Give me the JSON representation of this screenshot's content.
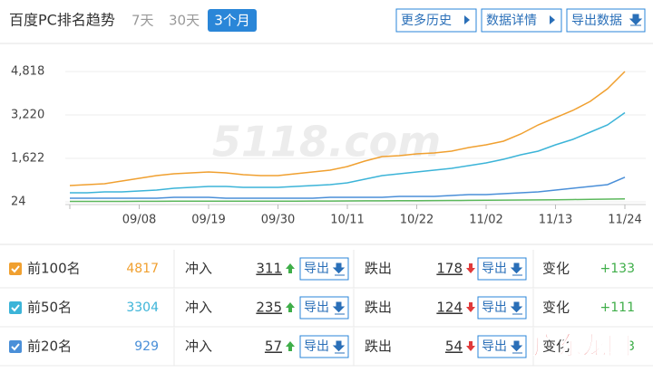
{
  "header": {
    "title": "百度PC排名趋势",
    "ranges": [
      "7天",
      "30天",
      "3个月"
    ],
    "buttons": [
      "更多历史",
      "数据详情",
      "导出数据"
    ]
  },
  "chart_data": {
    "type": "line",
    "watermark": "5118.com",
    "categories": [
      null,
      null,
      null,
      null,
      "09/08",
      null,
      null,
      null,
      "09/19",
      null,
      null,
      null,
      "09/30",
      null,
      null,
      null,
      "10/11",
      null,
      null,
      null,
      "10/22",
      null,
      null,
      null,
      "11/02",
      null,
      null,
      null,
      "11/13",
      null,
      null,
      null,
      "11/24"
    ],
    "ylim": [
      -76,
      5284
    ],
    "yticks": [
      24,
      {
        "value": 1622,
        "label": "1,622"
      },
      {
        "value": 3220,
        "label": "3,220"
      },
      {
        "value": 4818,
        "label": "4,818"
      }
    ],
    "grid": true,
    "series": [
      {
        "color": "#f0a030",
        "values": [
          623,
          657,
          690,
          790,
          890,
          990,
          1056,
          1090,
          1123,
          1090,
          1023,
          990,
          990,
          1056,
          1123,
          1190,
          1323,
          1523,
          1689,
          1722,
          1789,
          1822,
          1889,
          2022,
          2122,
          2255,
          2522,
          2855,
          3121,
          3388,
          3720,
          4186,
          4817
        ]
      },
      {
        "color": "#3cb4d8",
        "values": [
          357,
          357,
          390,
          390,
          424,
          457,
          524,
          557,
          590,
          590,
          557,
          557,
          557,
          590,
          623,
          657,
          723,
          856,
          990,
          1056,
          1123,
          1190,
          1256,
          1356,
          1456,
          1589,
          1756,
          1889,
          2122,
          2322,
          2588,
          2855,
          3304
        ]
      },
      {
        "color": "#4a8fd8",
        "values": [
          157,
          157,
          157,
          157,
          157,
          157,
          190,
          190,
          190,
          157,
          157,
          157,
          157,
          157,
          157,
          190,
          190,
          190,
          190,
          224,
          224,
          224,
          257,
          290,
          290,
          324,
          357,
          390,
          457,
          524,
          590,
          657,
          929
        ]
      },
      {
        "color": "#5cb85c",
        "values": [
          40,
          40,
          42,
          42,
          44,
          44,
          46,
          46,
          48,
          48,
          50,
          50,
          52,
          52,
          55,
          55,
          58,
          60,
          62,
          65,
          68,
          70,
          74,
          78,
          82,
          86,
          90,
          95,
          100,
          108,
          116,
          124,
          132
        ]
      }
    ]
  },
  "table": {
    "rows": [
      {
        "label": "前100名",
        "color": "#f0a030",
        "count": 4817,
        "in_label": "冲入",
        "in": 311,
        "export": "导出",
        "out_label": "跌出",
        "out": 178,
        "change_label": "变化",
        "change": "+133"
      },
      {
        "label": "前50名",
        "color": "#3cb4d8",
        "count": 3304,
        "in_label": "冲入",
        "in": 235,
        "export": "导出",
        "out_label": "跌出",
        "out": 124,
        "change_label": "变化",
        "change": "+111"
      },
      {
        "label": "前20名",
        "color": "#4a8fd8",
        "count": 929,
        "in_label": "冲入",
        "in": 57,
        "export": "导出",
        "out_label": "跌出",
        "out": 54,
        "change_label": "变化",
        "change": "3"
      }
    ]
  },
  "watermark": "广东龙网"
}
